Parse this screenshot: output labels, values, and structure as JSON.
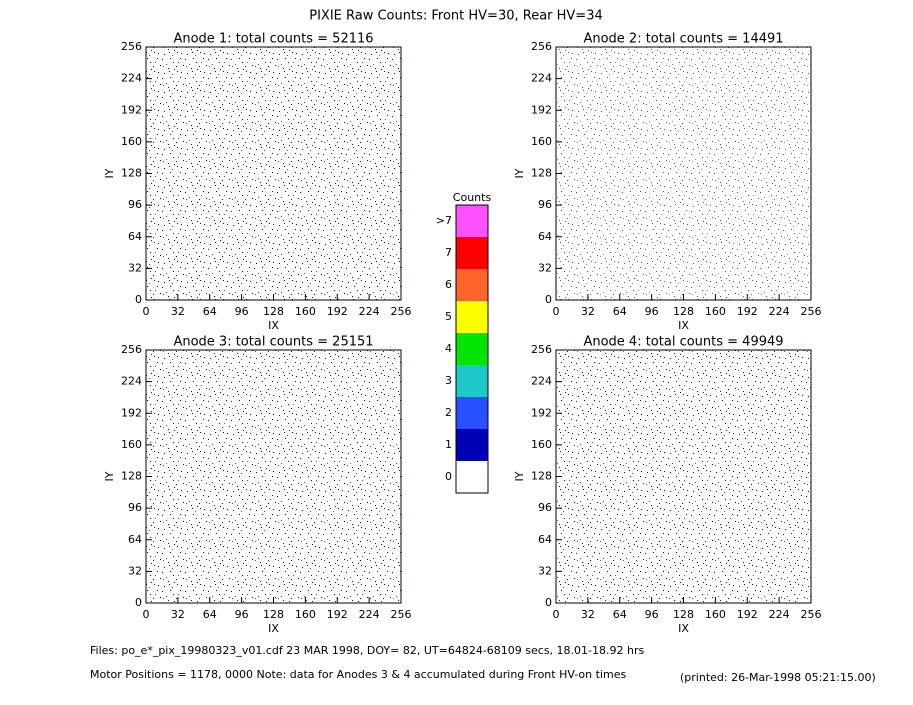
{
  "title": "PIXIE Raw Counts:  Front HV=30, Rear HV=34",
  "chart_data": [
    {
      "type": "heatmap",
      "title": "Anode 1: total counts = 52116",
      "xlabel": "IX",
      "ylabel": "IY",
      "xlim": [
        0,
        256
      ],
      "ylim": [
        0,
        256
      ],
      "xticks": [
        0,
        32,
        64,
        96,
        128,
        160,
        192,
        224,
        256
      ],
      "yticks": [
        0,
        32,
        64,
        96,
        128,
        160,
        192,
        224,
        256
      ]
    },
    {
      "type": "heatmap",
      "title": "Anode 2: total counts = 14491",
      "xlabel": "IX",
      "ylabel": "IY",
      "xlim": [
        0,
        256
      ],
      "ylim": [
        0,
        256
      ],
      "xticks": [
        0,
        32,
        64,
        96,
        128,
        160,
        192,
        224,
        256
      ],
      "yticks": [
        0,
        32,
        64,
        96,
        128,
        160,
        192,
        224,
        256
      ]
    },
    {
      "type": "heatmap",
      "title": "Anode 3: total counts = 25151",
      "xlabel": "IX",
      "ylabel": "IY",
      "xlim": [
        0,
        256
      ],
      "ylim": [
        0,
        256
      ],
      "xticks": [
        0,
        32,
        64,
        96,
        128,
        160,
        192,
        224,
        256
      ],
      "yticks": [
        0,
        32,
        64,
        96,
        128,
        160,
        192,
        224,
        256
      ]
    },
    {
      "type": "heatmap",
      "title": "Anode 4: total counts = 49949",
      "xlabel": "IX",
      "ylabel": "IY",
      "xlim": [
        0,
        256
      ],
      "ylim": [
        0,
        256
      ],
      "xticks": [
        0,
        32,
        64,
        96,
        128,
        160,
        192,
        224,
        256
      ],
      "yticks": [
        0,
        32,
        64,
        96,
        128,
        160,
        192,
        224,
        256
      ]
    }
  ],
  "colorbar": {
    "title": "Counts",
    "ticks": [
      0,
      1,
      2,
      3,
      4,
      5,
      6,
      7,
      {
        "value": 8,
        "label": ">7"
      }
    ],
    "colors": [
      "#ffffff",
      "#0000b4",
      "#2850ff",
      "#1ec8c8",
      "#00e600",
      "#ffff00",
      "#ff6428",
      "#ff0000",
      "#ff50ff"
    ]
  },
  "footer": {
    "files": "Files: po_e*_pix_19980323_v01.cdf    23 MAR 1998, DOY= 82, UT=64824-68109 secs, 18.01-18.92 hrs",
    "motor": "Motor Positions = 1178, 0000   Note: data for Anodes 3 & 4 accumulated during Front HV-on times",
    "printed": "(printed: 26-Mar-1998 05:21:15.00)"
  }
}
